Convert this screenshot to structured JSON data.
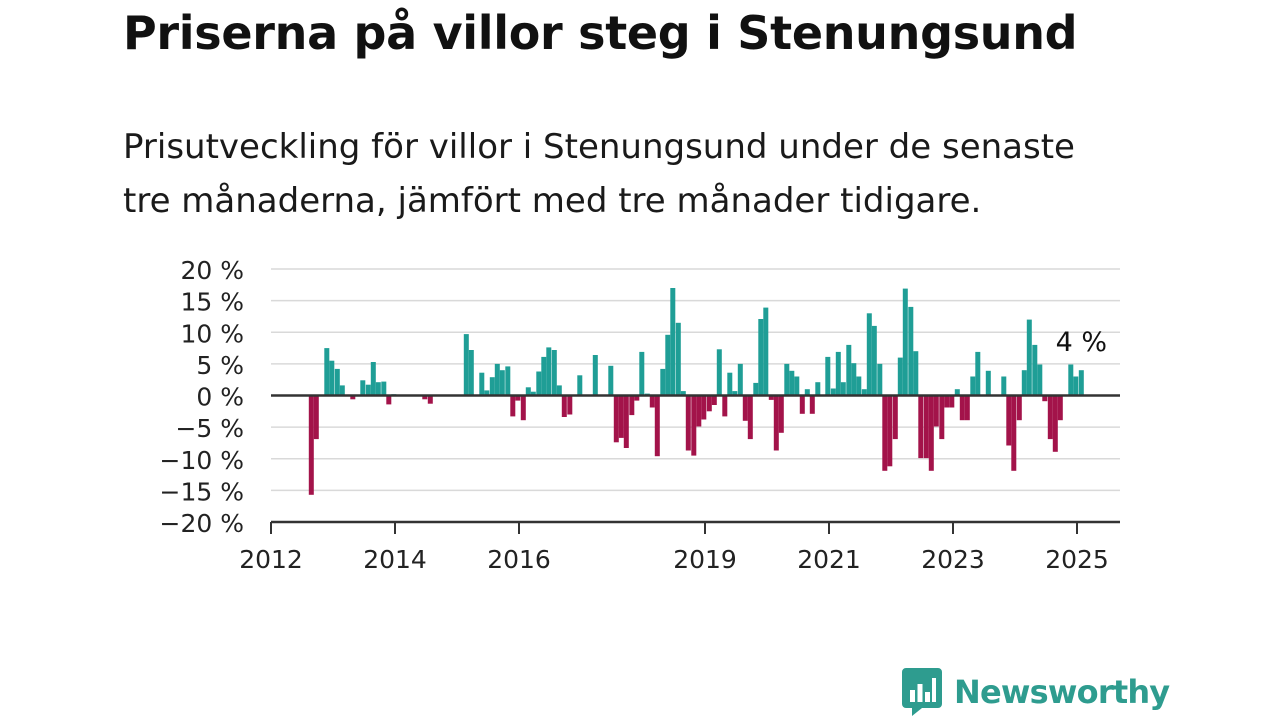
{
  "title": "Priserna på villor steg i Stenungsund",
  "subtitle": "Prisutveckling för villor i Stenungsund under de senaste tre månaderna, jämfört med tre månader tidigare.",
  "brand": {
    "name": "Newsworthy",
    "icon": "newsworthy-logo-icon",
    "color": "#2e9c8f"
  },
  "chart_data": {
    "type": "bar",
    "unit": "%",
    "y_tick_labels": [
      "20 %",
      "15 %",
      "10 %",
      "5 %",
      "0 %",
      "−5 %",
      "−10 %",
      "−15 %",
      "−20 %"
    ],
    "y_ticks": [
      20,
      15,
      10,
      5,
      0,
      -5,
      -10,
      -15,
      -20
    ],
    "ylim": [
      -20,
      20
    ],
    "x_tick_labels": [
      "2012",
      "2014",
      "2016",
      "2019",
      "2021",
      "2023",
      "2025"
    ],
    "x_ticks": [
      2012,
      2014,
      2016,
      2019,
      2021,
      2023,
      2025
    ],
    "xlim": [
      2012,
      2025.65
    ],
    "grid": true,
    "colors": {
      "positive": "#1f9e96",
      "negative": "#a3134a",
      "grid": "#d9d9d9",
      "axis": "#333333"
    },
    "end_label": "4 %",
    "x": [
      2012.65,
      2012.73,
      2012.9,
      2012.98,
      2013.07,
      2013.15,
      2013.32,
      2013.48,
      2013.57,
      2013.65,
      2013.73,
      2013.82,
      2013.9,
      2013.98,
      2014.48,
      2014.57,
      2015.15,
      2015.23,
      2015.4,
      2015.48,
      2015.57,
      2015.65,
      2015.73,
      2015.82,
      2015.9,
      2015.98,
      2016.07,
      2016.15,
      2016.23,
      2016.32,
      2016.4,
      2016.48,
      2016.57,
      2016.65,
      2016.73,
      2016.82,
      2016.98,
      2017.23,
      2017.48,
      2017.57,
      2017.65,
      2017.73,
      2017.82,
      2017.9,
      2017.98,
      2018.07,
      2018.15,
      2018.23,
      2018.32,
      2018.4,
      2018.48,
      2018.57,
      2018.65,
      2018.73,
      2018.82,
      2018.9,
      2018.98,
      2019.07,
      2019.15,
      2019.23,
      2019.32,
      2019.4,
      2019.48,
      2019.57,
      2019.65,
      2019.73,
      2019.82,
      2019.9,
      2019.98,
      2020.07,
      2020.15,
      2020.23,
      2020.32,
      2020.4,
      2020.48,
      2020.57,
      2020.65,
      2020.73,
      2020.82,
      2020.9,
      2020.98,
      2021.07,
      2021.15,
      2021.23,
      2021.32,
      2021.4,
      2021.48,
      2021.57,
      2021.65,
      2021.73,
      2021.82,
      2021.9,
      2021.98,
      2022.07,
      2022.15,
      2022.23,
      2022.32,
      2022.4,
      2022.48,
      2022.57,
      2022.65,
      2022.73,
      2022.82,
      2022.9,
      2022.98,
      2023.07,
      2023.15,
      2023.23,
      2023.32,
      2023.4,
      2023.57,
      2023.82,
      2023.9,
      2023.98,
      2024.07,
      2024.15,
      2024.23,
      2024.32,
      2024.4,
      2024.48,
      2024.57,
      2024.65,
      2024.73,
      2024.9,
      2024.98,
      2025.07
    ],
    "values": [
      -15.7,
      -6.9,
      7.5,
      5.5,
      4.2,
      1.6,
      -0.6,
      2.4,
      1.7,
      5.3,
      2.1,
      2.2,
      -1.4,
      0.2,
      -0.6,
      -1.3,
      9.7,
      7.2,
      3.6,
      0.8,
      2.9,
      5.0,
      4.0,
      4.6,
      -3.3,
      -0.8,
      -3.9,
      1.3,
      0.6,
      3.8,
      6.1,
      7.6,
      7.2,
      1.6,
      -3.4,
      -3.0,
      3.2,
      6.4,
      4.7,
      -7.4,
      -6.7,
      -8.3,
      -3.1,
      -0.8,
      6.9,
      0.3,
      -1.9,
      -9.6,
      4.2,
      9.6,
      17.0,
      11.5,
      0.7,
      -8.7,
      -9.5,
      -4.9,
      -3.8,
      -2.5,
      -1.5,
      7.3,
      -3.3,
      3.6,
      0.7,
      5.0,
      -4.0,
      -6.9,
      2.0,
      12.1,
      13.9,
      -0.7,
      -8.7,
      -5.9,
      5.0,
      3.9,
      3.0,
      -2.9,
      1.0,
      -2.9,
      2.1,
      0.0,
      6.1,
      1.1,
      6.9,
      2.1,
      8.0,
      5.1,
      3.0,
      1.0,
      13.0,
      11.0,
      5.0,
      -11.9,
      -11.2,
      -6.9,
      6.0,
      16.9,
      14.0,
      7.0,
      -9.9,
      -9.9,
      -11.9,
      -4.9,
      -6.9,
      -1.9,
      -1.9,
      1.0,
      -3.9,
      -3.9,
      3.0,
      6.9,
      3.9,
      3.0,
      -7.9,
      -11.9,
      -3.9,
      4.0,
      12.0,
      8.0,
      4.9,
      -0.9,
      -6.9,
      -8.9,
      -3.9,
      4.9,
      3.0,
      4.0
    ]
  }
}
